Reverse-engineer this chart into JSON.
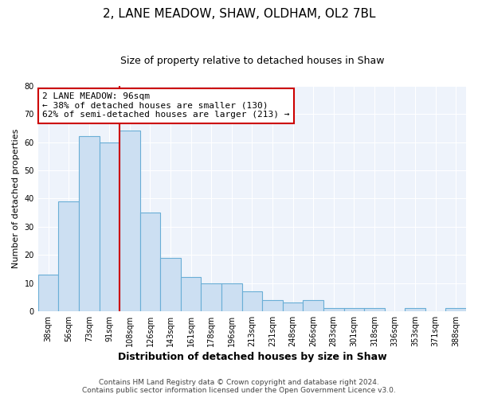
{
  "title": "2, LANE MEADOW, SHAW, OLDHAM, OL2 7BL",
  "subtitle": "Size of property relative to detached houses in Shaw",
  "xlabel": "Distribution of detached houses by size in Shaw",
  "ylabel": "Number of detached properties",
  "categories": [
    "38sqm",
    "56sqm",
    "73sqm",
    "91sqm",
    "108sqm",
    "126sqm",
    "143sqm",
    "161sqm",
    "178sqm",
    "196sqm",
    "213sqm",
    "231sqm",
    "248sqm",
    "266sqm",
    "283sqm",
    "301sqm",
    "318sqm",
    "336sqm",
    "353sqm",
    "371sqm",
    "388sqm"
  ],
  "values": [
    13,
    39,
    62,
    60,
    64,
    35,
    19,
    12,
    10,
    10,
    7,
    4,
    3,
    4,
    1,
    1,
    1,
    0,
    1,
    0,
    1
  ],
  "bar_color": "#ccdff2",
  "bar_edge_color": "#6aaed6",
  "vline_color": "#cc0000",
  "vline_index": 3.5,
  "annotation_line1": "2 LANE MEADOW: 96sqm",
  "annotation_line2": "← 38% of detached houses are smaller (130)",
  "annotation_line3": "62% of semi-detached houses are larger (213) →",
  "annotation_box_facecolor": "#ffffff",
  "annotation_box_edgecolor": "#cc0000",
  "ylim": [
    0,
    80
  ],
  "yticks": [
    0,
    10,
    20,
    30,
    40,
    50,
    60,
    70,
    80
  ],
  "footer_line1": "Contains HM Land Registry data © Crown copyright and database right 2024.",
  "footer_line2": "Contains public sector information licensed under the Open Government Licence v3.0.",
  "background_color": "#ffffff",
  "plot_bg_color": "#eef3fb",
  "grid_color": "#ffffff",
  "title_fontsize": 11,
  "subtitle_fontsize": 9,
  "xlabel_fontsize": 9,
  "ylabel_fontsize": 8,
  "tick_fontsize": 7,
  "annotation_fontsize": 8,
  "footer_fontsize": 6.5
}
